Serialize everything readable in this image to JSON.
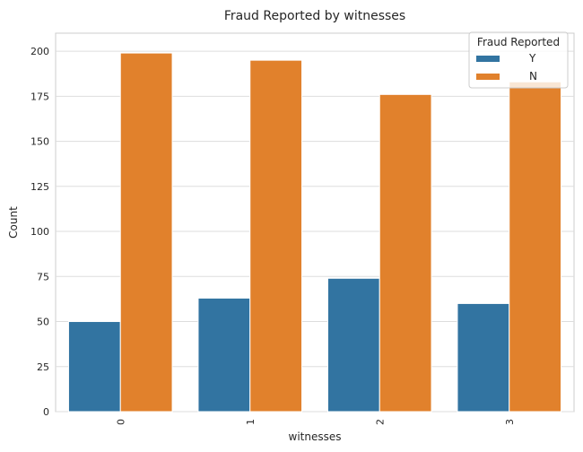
{
  "chart_data": {
    "type": "bar",
    "title": "Fraud Reported by witnesses",
    "xlabel": "witnesses",
    "ylabel": "Count",
    "categories": [
      "0",
      "1",
      "2",
      "3"
    ],
    "ylim": [
      0,
      210
    ],
    "yticks": [
      0,
      25,
      50,
      75,
      100,
      125,
      150,
      175,
      200
    ],
    "grid": true,
    "legend": {
      "title": "Fraud Reported",
      "placement": "top-right"
    },
    "series": [
      {
        "name": "Y",
        "color": "#3274a1",
        "values": [
          50,
          63,
          74,
          60
        ]
      },
      {
        "name": "N",
        "color": "#e1812c",
        "values": [
          199,
          195,
          176,
          183
        ]
      }
    ]
  }
}
